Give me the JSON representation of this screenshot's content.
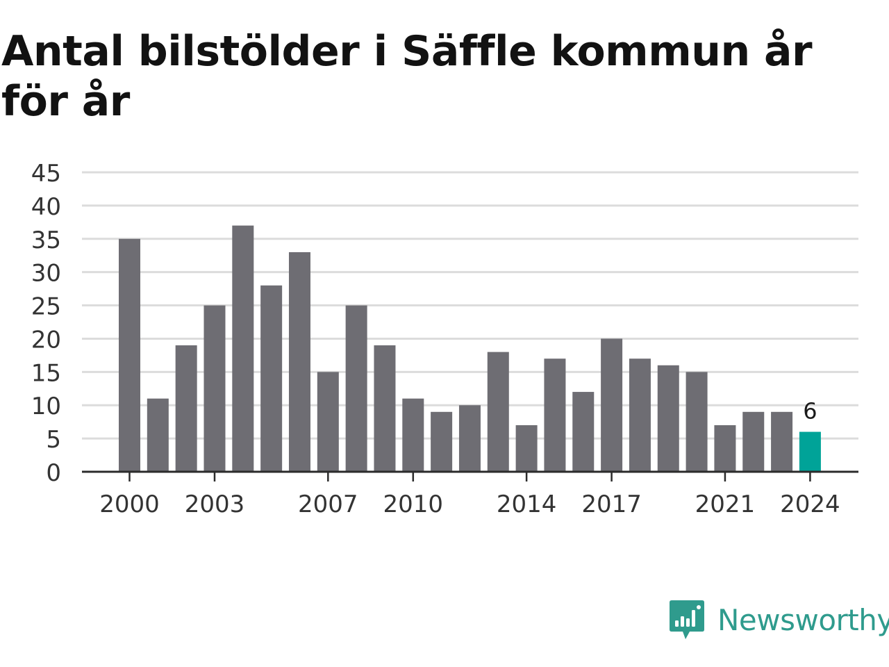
{
  "title": "Antal bilstölder i Säffle kommun år för år",
  "logo": {
    "text": "Newsworthy",
    "icon": "newsworthy-chart-bubble-icon",
    "color": "#2f9b8d"
  },
  "chart_data": {
    "type": "bar",
    "title": "Antal bilstölder i Säffle kommun år för år",
    "xlabel": "",
    "ylabel": "",
    "ylim": [
      0,
      45
    ],
    "yticks": [
      0,
      5,
      10,
      15,
      20,
      25,
      30,
      35,
      40,
      45
    ],
    "grid": true,
    "categories": [
      2000,
      2001,
      2002,
      2003,
      2004,
      2005,
      2006,
      2007,
      2008,
      2009,
      2010,
      2011,
      2012,
      2013,
      2014,
      2015,
      2016,
      2017,
      2018,
      2019,
      2020,
      2021,
      2022,
      2023,
      2024
    ],
    "xtick_labels": [
      "2000",
      "2003",
      "2007",
      "2010",
      "2014",
      "2017",
      "2021",
      "2024"
    ],
    "values": [
      35,
      11,
      19,
      25,
      37,
      28,
      33,
      15,
      25,
      19,
      11,
      9,
      10,
      18,
      7,
      17,
      12,
      20,
      17,
      16,
      15,
      7,
      9,
      9,
      6
    ],
    "bar_color": "#6e6d73",
    "highlight_color": "#00a398",
    "highlight_index": 24,
    "data_labels": [
      {
        "index": 24,
        "text": "6"
      }
    ]
  }
}
